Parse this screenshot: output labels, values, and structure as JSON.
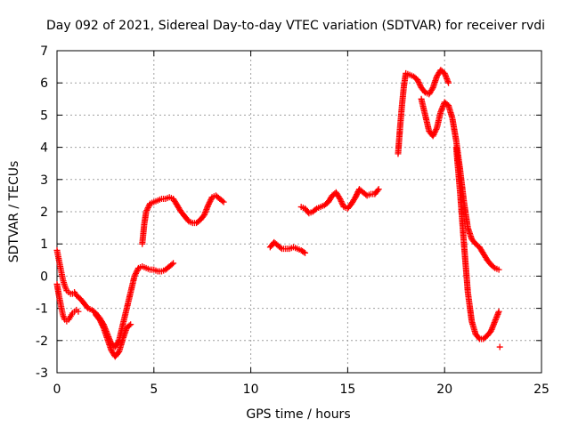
{
  "chart_data": {
    "type": "scatter",
    "title": "Day 092 of 2021, Sidereal Day-to-day VTEC variation (SDTVAR) for receiver rvdi",
    "xlabel": "GPS time / hours",
    "ylabel": "SDTVAR / TECUs",
    "xlim": [
      0,
      25
    ],
    "ylim": [
      -3,
      7
    ],
    "xticks": [
      0,
      5,
      10,
      15,
      20,
      25
    ],
    "yticks": [
      -3,
      -2,
      -1,
      0,
      1,
      2,
      3,
      4,
      5,
      6,
      7
    ],
    "xtick_labels": [
      "0",
      "5",
      "10",
      "15",
      "20",
      "25"
    ],
    "ytick_labels": [
      "-3",
      "-2",
      "-1",
      "0",
      "1",
      "2",
      "3",
      "4",
      "5",
      "6",
      "7"
    ],
    "grid": true,
    "marker": "+",
    "series": [
      {
        "name": "rvdi",
        "color": "#ff0000",
        "tracks": [
          {
            "x": [
              0.0,
              0.1,
              0.2,
              0.3,
              0.4,
              0.5,
              0.6,
              0.7,
              0.8,
              0.9,
              1.0,
              1.1
            ],
            "y": [
              -0.25,
              -0.6,
              -0.9,
              -1.2,
              -1.35,
              -1.4,
              -1.35,
              -1.25,
              -1.15,
              -1.1,
              -1.05,
              -1.1
            ]
          },
          {
            "x": [
              0.0,
              0.1,
              0.2,
              0.3,
              0.4,
              0.5,
              0.6,
              0.7,
              0.8,
              0.9,
              1.0,
              1.2,
              1.4,
              1.6,
              1.8,
              2.0,
              2.2,
              2.4,
              2.6,
              2.8,
              3.0,
              3.2,
              3.4,
              3.6,
              3.8,
              4.0,
              4.2,
              4.4,
              4.6,
              4.8,
              5.0,
              5.2,
              5.4,
              5.6,
              5.8,
              6.0
            ],
            "y": [
              0.8,
              0.5,
              0.2,
              -0.1,
              -0.3,
              -0.45,
              -0.5,
              -0.55,
              -0.55,
              -0.5,
              -0.6,
              -0.7,
              -0.85,
              -1.0,
              -1.05,
              -1.15,
              -1.3,
              -1.5,
              -1.8,
              -2.1,
              -2.2,
              -2.0,
              -1.5,
              -1.0,
              -0.5,
              0.0,
              0.25,
              0.3,
              0.25,
              0.2,
              0.2,
              0.15,
              0.15,
              0.2,
              0.3,
              0.4
            ]
          },
          {
            "x": [
              2.0,
              2.2,
              2.4,
              2.6,
              2.8,
              3.0,
              3.2,
              3.4,
              3.6,
              3.8
            ],
            "y": [
              -1.2,
              -1.35,
              -1.6,
              -1.95,
              -2.3,
              -2.5,
              -2.35,
              -1.95,
              -1.6,
              -1.5
            ]
          },
          {
            "x": [
              4.4,
              4.5,
              4.6,
              4.8,
              5.0,
              5.2,
              5.4,
              5.6,
              5.8,
              6.0,
              6.2,
              6.4,
              6.6,
              6.8,
              7.0,
              7.2,
              7.4,
              7.6,
              7.8,
              8.0,
              8.2,
              8.4,
              8.6
            ],
            "y": [
              1.0,
              1.6,
              2.0,
              2.25,
              2.3,
              2.35,
              2.4,
              2.4,
              2.45,
              2.4,
              2.2,
              2.0,
              1.85,
              1.7,
              1.65,
              1.65,
              1.75,
              1.9,
              2.2,
              2.45,
              2.5,
              2.4,
              2.3
            ]
          },
          {
            "x": [
              11.0,
              11.2,
              11.4,
              11.6,
              11.8,
              12.0,
              12.2,
              12.4,
              12.6,
              12.8
            ],
            "y": [
              0.9,
              1.05,
              0.95,
              0.85,
              0.85,
              0.85,
              0.9,
              0.85,
              0.8,
              0.72
            ]
          },
          {
            "x": [
              12.6,
              12.8,
              13.0,
              13.2,
              13.4,
              13.6,
              13.8,
              14.0,
              14.2,
              14.4,
              14.6,
              14.8,
              15.0,
              15.2,
              15.4,
              15.6,
              15.8,
              16.0,
              16.2,
              16.4,
              16.6
            ],
            "y": [
              2.15,
              2.1,
              1.95,
              2.0,
              2.1,
              2.15,
              2.2,
              2.3,
              2.5,
              2.6,
              2.4,
              2.15,
              2.1,
              2.25,
              2.45,
              2.7,
              2.6,
              2.5,
              2.55,
              2.55,
              2.7
            ]
          },
          {
            "x": [
              17.6,
              17.7,
              17.8,
              17.9,
              18.0,
              18.2,
              18.4,
              18.6,
              18.8,
              19.0,
              19.2,
              19.4,
              19.6,
              19.8,
              20.0,
              20.2
            ],
            "y": [
              3.8,
              4.6,
              5.3,
              5.9,
              6.3,
              6.25,
              6.2,
              6.1,
              5.85,
              5.7,
              5.65,
              5.85,
              6.2,
              6.4,
              6.3,
              6.0
            ]
          },
          {
            "x": [
              18.8,
              19.0,
              19.2,
              19.4,
              19.6,
              19.8,
              20.0,
              20.2,
              20.4,
              20.6,
              20.8,
              21.0,
              21.2,
              21.4,
              21.6,
              21.8,
              22.0,
              22.2,
              22.4,
              22.6,
              22.8
            ],
            "y": [
              5.5,
              5.0,
              4.5,
              4.35,
              4.6,
              5.1,
              5.4,
              5.3,
              4.9,
              4.2,
              3.3,
              2.3,
              1.5,
              1.15,
              1.0,
              0.9,
              0.7,
              0.5,
              0.35,
              0.25,
              0.2
            ]
          },
          {
            "x": [
              20.6,
              20.8,
              21.0,
              21.2,
              21.4,
              21.6,
              21.8,
              22.0,
              22.2,
              22.4,
              22.6,
              22.8
            ],
            "y": [
              4.0,
              2.6,
              1.0,
              -0.5,
              -1.4,
              -1.8,
              -1.95,
              -1.95,
              -1.85,
              -1.7,
              -1.4,
              -1.1
            ]
          },
          {
            "x": [
              22.85
            ],
            "y": [
              -2.2
            ]
          }
        ]
      }
    ]
  }
}
